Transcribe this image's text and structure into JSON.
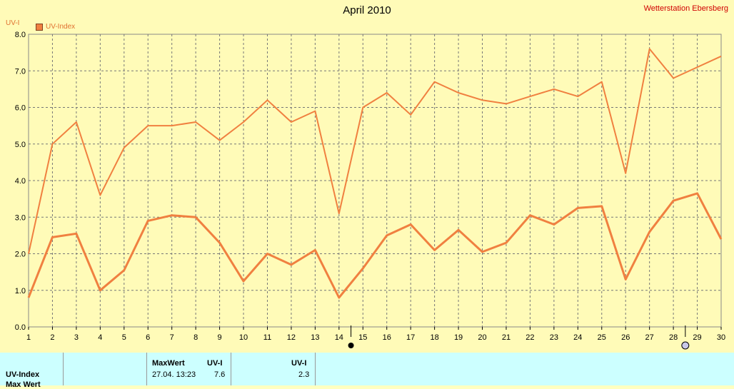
{
  "header": {
    "title": "April 2010",
    "station": "Wetterstation Ebersberg",
    "ylabel": "UV-I",
    "legend": "UV-Index"
  },
  "colors": {
    "line": "#f08040",
    "grid": "#777777",
    "background": "#fffbb8",
    "footer": "#ccffff"
  },
  "chart_data": {
    "type": "line",
    "title": "April 2010",
    "ylabel": "UV-I",
    "xlabel": "",
    "ylim": [
      0,
      8
    ],
    "yticks": [
      "0.0",
      "1.0",
      "2.0",
      "3.0",
      "4.0",
      "5.0",
      "6.0",
      "7.0",
      "8.0"
    ],
    "x": [
      1,
      2,
      3,
      4,
      5,
      6,
      7,
      8,
      9,
      10,
      11,
      12,
      13,
      14,
      15,
      16,
      17,
      18,
      19,
      20,
      21,
      22,
      23,
      24,
      25,
      26,
      27,
      28,
      29,
      30
    ],
    "grid": true,
    "series": [
      {
        "values": [
          2.0,
          5.0,
          5.6,
          3.6,
          4.9,
          5.5,
          5.5,
          5.6,
          5.1,
          5.6,
          6.2,
          5.6,
          5.9,
          3.1,
          6.0,
          6.4,
          5.8,
          6.7,
          6.4,
          6.2,
          6.1,
          6.3,
          6.5,
          6.3,
          6.7,
          4.2,
          7.6,
          6.8,
          7.1,
          7.4
        ]
      },
      {
        "values": [
          0.8,
          2.45,
          2.55,
          1.0,
          1.55,
          2.9,
          3.05,
          3.0,
          2.3,
          1.25,
          2.0,
          1.7,
          2.1,
          0.8,
          1.6,
          2.5,
          2.8,
          2.1,
          2.65,
          2.05,
          2.3,
          3.05,
          2.8,
          3.25,
          3.3,
          1.3,
          2.6,
          3.45,
          3.65,
          2.4
        ]
      }
    ],
    "markers": [
      {
        "x": 14.5,
        "style": "filled"
      },
      {
        "x": 28.5,
        "style": "hollow"
      }
    ]
  },
  "footer": {
    "row_label": "UV-Index",
    "row_label2": "Max Wert",
    "maxwert_header": "MaxWert",
    "uvi_header": "UV-I",
    "uvi_header2": "UV-I",
    "max_time": "27.04.  13:23",
    "max_value": "7.6",
    "current_value": "2.3"
  }
}
